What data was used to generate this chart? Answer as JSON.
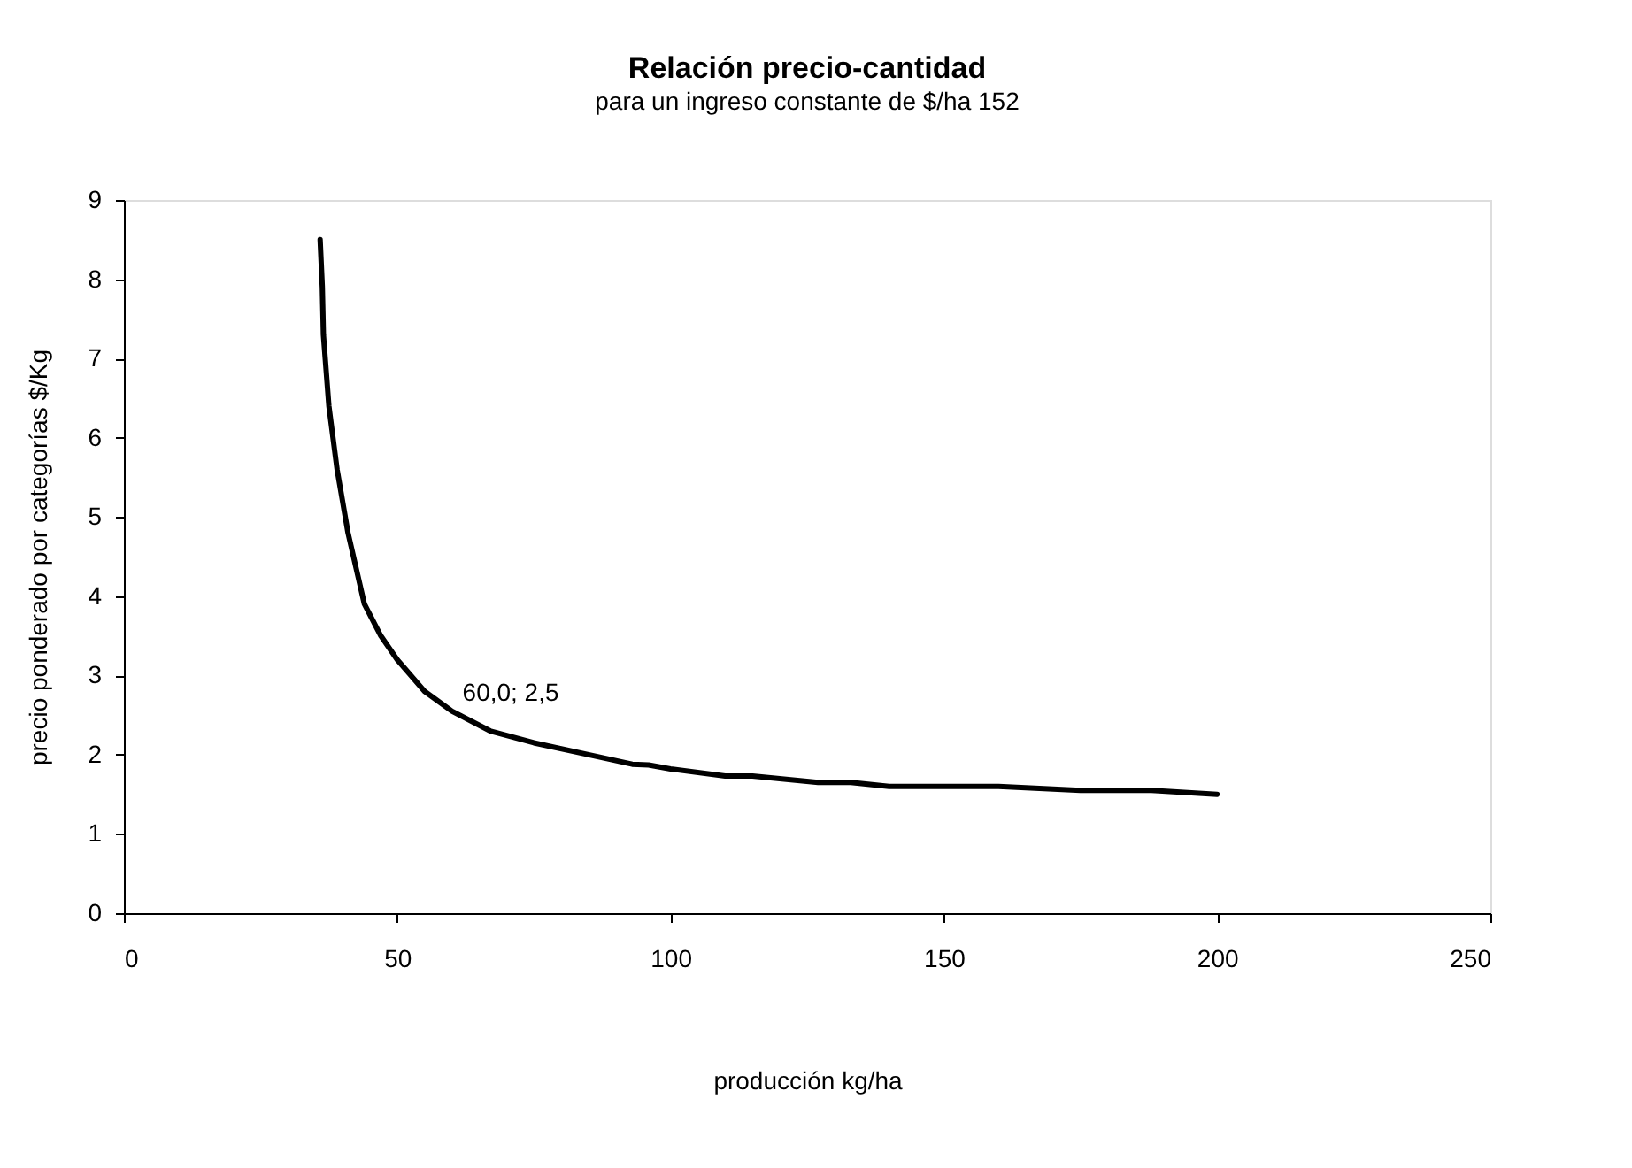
{
  "chart_data": {
    "type": "line",
    "title": "Relación precio-cantidad",
    "subtitle": "para un ingreso constante de $/ha 152",
    "xlabel": "producción kg/ha",
    "ylabel": "precio ponderado por categorías $/Kg",
    "series": [
      {
        "color": "#000000",
        "x": [
          35.9,
          36.3,
          36.5,
          37.5,
          39,
          41,
          44,
          47,
          50,
          55,
          60,
          67,
          75,
          85,
          93,
          96,
          100,
          110,
          115,
          127,
          133,
          140,
          160,
          175,
          188,
          200
        ],
        "values": [
          8.5,
          7.9,
          7.3,
          6.4,
          5.6,
          4.8,
          3.9,
          3.5,
          3.2,
          2.8,
          2.55,
          2.3,
          2.15,
          2.0,
          1.88,
          1.87,
          1.82,
          1.73,
          1.73,
          1.65,
          1.65,
          1.6,
          1.6,
          1.55,
          1.55,
          1.5
        ]
      }
    ],
    "annotations": [
      {
        "text": "60,0; 2,5",
        "x": 60,
        "y": 2.5
      }
    ],
    "xlim": [
      0,
      250
    ],
    "xticks": [
      0,
      50,
      100,
      150,
      200,
      250
    ],
    "ylim": [
      0,
      9
    ],
    "yticks": [
      0,
      1,
      2,
      3,
      4,
      5,
      6,
      7,
      8,
      9
    ],
    "grid": false,
    "legend": false,
    "marker": "none",
    "line_style": "solid"
  }
}
